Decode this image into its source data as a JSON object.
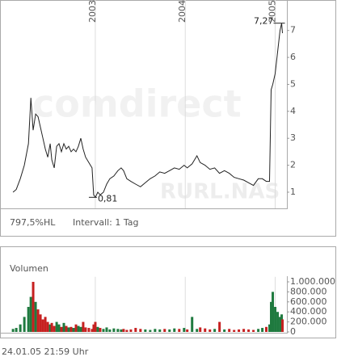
{
  "chart_data": [
    {
      "type": "line",
      "watermark": "comdirect",
      "symbol": "RURL.NAS",
      "range_label": "797,5%HL",
      "interval_label": "Intervall: 1 Tag",
      "color": "#222222",
      "grid": true,
      "xlim": [
        2002.03,
        2005.13
      ],
      "xticks": [
        2003,
        2004,
        2005
      ],
      "ylim": [
        0.4,
        8.13
      ],
      "yticks": [
        1,
        2,
        3,
        4,
        5,
        6,
        7
      ],
      "x": [
        2002.085,
        2002.121,
        2002.166,
        2002.211,
        2002.256,
        2002.283,
        2002.309,
        2002.336,
        2002.363,
        2002.39,
        2002.417,
        2002.444,
        2002.471,
        2002.498,
        2002.516,
        2002.543,
        2002.57,
        2002.596,
        2002.623,
        2002.65,
        2002.677,
        2002.704,
        2002.731,
        2002.758,
        2002.785,
        2002.812,
        2002.839,
        2002.865,
        2002.892,
        2002.928,
        2002.964,
        2002.982,
        2003.0,
        2003.027,
        2003.054,
        2003.09,
        2003.126,
        2003.161,
        2003.206,
        2003.251,
        2003.287,
        2003.314,
        2003.35,
        2003.395,
        2003.448,
        2003.502,
        2003.556,
        2003.61,
        2003.664,
        2003.717,
        2003.771,
        2003.825,
        2003.879,
        2003.933,
        2003.987,
        2004.022,
        2004.076,
        2004.13,
        2004.166,
        2004.22,
        2004.274,
        2004.327,
        2004.381,
        2004.435,
        2004.489,
        2004.543,
        2004.596,
        2004.65,
        2004.704,
        2004.758,
        2004.812,
        2004.857,
        2004.901,
        2004.937,
        2004.955,
        2004.973,
        2005.0,
        2005.027,
        2005.054,
        2005.072,
        2005.081
      ],
      "values": [
        1.0,
        1.1,
        1.5,
        2.0,
        2.8,
        4.5,
        3.3,
        3.9,
        3.8,
        3.4,
        3.0,
        2.6,
        2.3,
        2.8,
        2.2,
        1.9,
        2.7,
        2.8,
        2.5,
        2.8,
        2.6,
        2.7,
        2.5,
        2.6,
        2.5,
        2.7,
        3.0,
        2.6,
        2.3,
        2.1,
        1.9,
        0.9,
        0.81,
        1.0,
        0.9,
        1.0,
        1.3,
        1.5,
        1.6,
        1.8,
        1.9,
        1.8,
        1.5,
        1.4,
        1.3,
        1.2,
        1.35,
        1.5,
        1.6,
        1.75,
        1.7,
        1.8,
        1.9,
        1.85,
        2.0,
        1.9,
        2.05,
        2.35,
        2.1,
        2.0,
        1.85,
        1.9,
        1.7,
        1.8,
        1.7,
        1.55,
        1.5,
        1.45,
        1.35,
        1.25,
        1.5,
        1.5,
        1.4,
        1.4,
        4.8,
        5.0,
        5.4,
        6.2,
        7.0,
        7.27,
        6.9
      ],
      "annotations": [
        {
          "label": "7,27",
          "x": 2005.072,
          "value": 7.27
        },
        {
          "label": "0,81",
          "x": 2003.0,
          "value": 0.81
        }
      ]
    },
    {
      "type": "bar",
      "title": "Volumen",
      "up_color": "#1f7a3f",
      "down_color": "#c62020",
      "grid": true,
      "xlim": [
        2002.03,
        2005.13
      ],
      "xticks": [
        2003,
        2004,
        2005
      ],
      "ylim": [
        0,
        1100000
      ],
      "yticks": [
        0,
        {
          "value": 200000,
          "label": "200.000"
        },
        {
          "value": 400000,
          "label": "400.000"
        },
        {
          "value": 600000,
          "label": "600.000"
        },
        {
          "value": 800000,
          "label": "800.000"
        },
        {
          "value": 1000000,
          "label": "1.000.000"
        }
      ],
      "x": [
        2002.085,
        2002.121,
        2002.166,
        2002.211,
        2002.256,
        2002.283,
        2002.309,
        2002.336,
        2002.363,
        2002.39,
        2002.417,
        2002.444,
        2002.471,
        2002.498,
        2002.516,
        2002.543,
        2002.57,
        2002.596,
        2002.623,
        2002.65,
        2002.677,
        2002.704,
        2002.731,
        2002.758,
        2002.785,
        2002.812,
        2002.839,
        2002.865,
        2002.892,
        2002.928,
        2002.964,
        2002.982,
        2003.0,
        2003.027,
        2003.054,
        2003.09,
        2003.126,
        2003.161,
        2003.206,
        2003.251,
        2003.287,
        2003.314,
        2003.35,
        2003.395,
        2003.448,
        2003.502,
        2003.556,
        2003.61,
        2003.664,
        2003.717,
        2003.771,
        2003.825,
        2003.879,
        2003.933,
        2003.987,
        2004.022,
        2004.076,
        2004.13,
        2004.166,
        2004.22,
        2004.274,
        2004.327,
        2004.381,
        2004.435,
        2004.489,
        2004.543,
        2004.596,
        2004.65,
        2004.704,
        2004.758,
        2004.812,
        2004.857,
        2004.901,
        2004.937,
        2004.955,
        2004.973,
        2005.0,
        2005.027,
        2005.054,
        2005.072,
        2005.081
      ],
      "values": [
        60000,
        80000,
        150000,
        300000,
        500000,
        700000,
        1000000,
        600000,
        450000,
        350000,
        250000,
        300000,
        200000,
        150000,
        180000,
        120000,
        200000,
        150000,
        100000,
        180000,
        120000,
        90000,
        100000,
        80000,
        150000,
        120000,
        100000,
        200000,
        90000,
        80000,
        60000,
        150000,
        200000,
        100000,
        80000,
        60000,
        90000,
        50000,
        70000,
        60000,
        50000,
        60000,
        40000,
        50000,
        80000,
        60000,
        50000,
        40000,
        60000,
        50000,
        60000,
        50000,
        70000,
        60000,
        80000,
        50000,
        300000,
        60000,
        90000,
        70000,
        50000,
        60000,
        200000,
        50000,
        60000,
        40000,
        50000,
        60000,
        50000,
        40000,
        60000,
        80000,
        100000,
        150000,
        600000,
        800000,
        500000,
        400000,
        300000,
        350000,
        250000
      ]
    }
  ],
  "timestamp": "24.01.05   21:59 Uhr"
}
